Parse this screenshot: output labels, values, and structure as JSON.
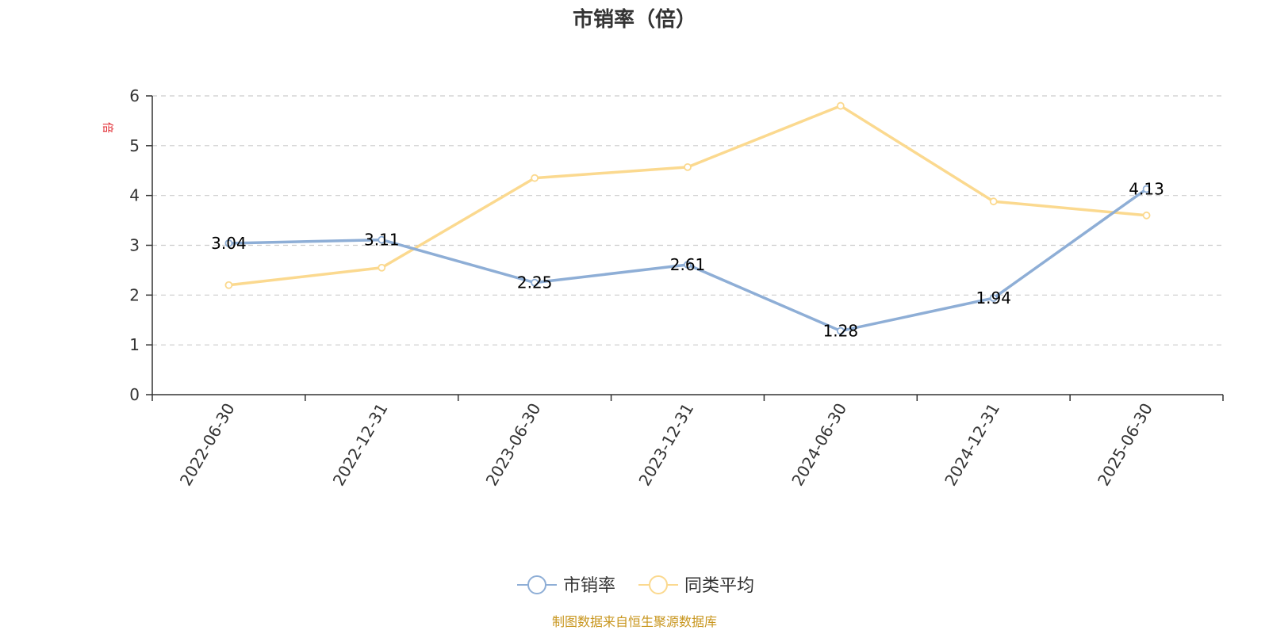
{
  "chart_data": {
    "type": "line",
    "title": "市销率（倍）",
    "ylabel": "倍",
    "ylim": [
      0,
      6
    ],
    "yticks": [
      0,
      1,
      2,
      3,
      4,
      5,
      6
    ],
    "categories": [
      "2022-06-30",
      "2022-12-31",
      "2023-06-30",
      "2023-12-31",
      "2024-06-30",
      "2024-12-31",
      "2025-06-30"
    ],
    "series": [
      {
        "name": "市销率",
        "values": [
          3.04,
          3.11,
          2.25,
          2.61,
          1.28,
          1.94,
          4.13
        ],
        "color": "#8eaed6",
        "labels": [
          "3.04",
          "3.11",
          "2.25",
          "2.61",
          "1.28",
          "1.94",
          "4.13"
        ]
      },
      {
        "name": "同类平均",
        "values": [
          2.2,
          2.55,
          4.35,
          4.57,
          5.8,
          3.88,
          3.6
        ],
        "color": "#fbd98f"
      }
    ],
    "grid": true,
    "legend": "bottom-center"
  },
  "source": "制图数据来自恒生聚源数据库",
  "colors": {
    "axis": "#333333",
    "grid": "#cccccc",
    "unit": "#e0242b",
    "source": "#c8961e"
  }
}
